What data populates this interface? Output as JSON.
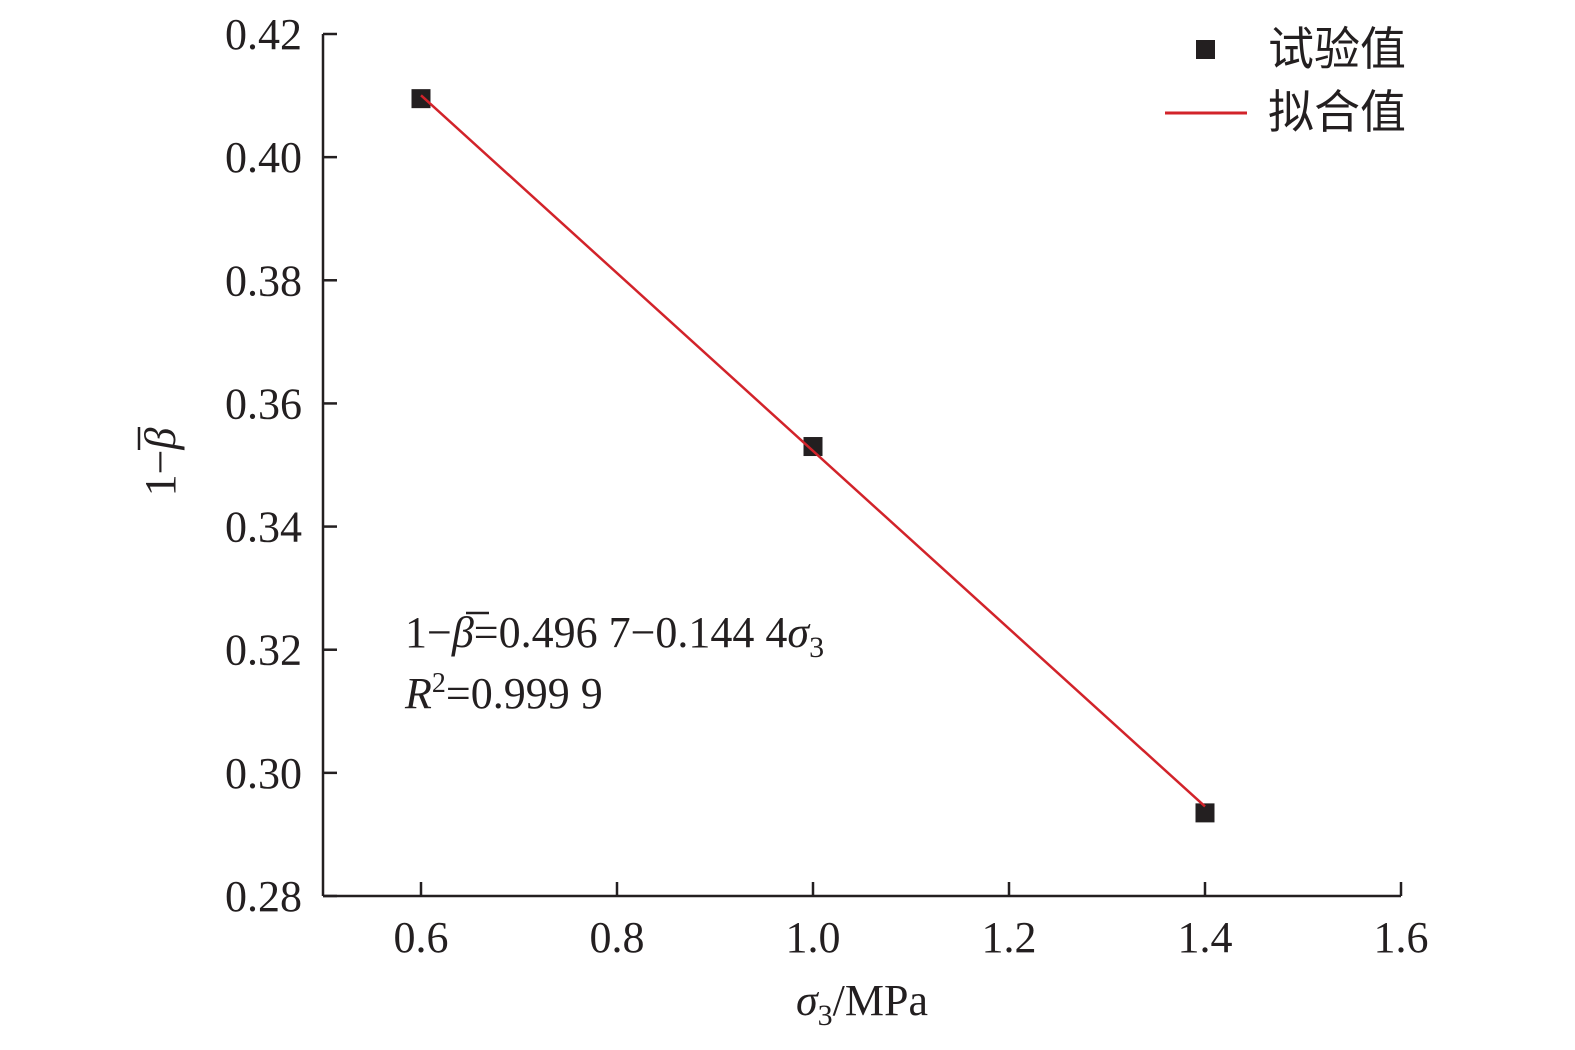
{
  "chart_data": {
    "type": "scatter",
    "xlabel": {
      "symbol": "σ",
      "sub": "3",
      "unit": "/MPa"
    },
    "ylabel": {
      "prefix": "1−",
      "symbol": "β"
    },
    "xlim": [
      0.5,
      1.6
    ],
    "ylim": [
      0.28,
      0.42
    ],
    "xticks": [
      "0.6",
      "0.8",
      "1.0",
      "1.2",
      "1.4",
      "1.6"
    ],
    "yticks": [
      "0.28",
      "0.30",
      "0.32",
      "0.34",
      "0.36",
      "0.38",
      "0.40",
      "0.42"
    ],
    "series": [
      {
        "name": "试验值",
        "kind": "points",
        "color": "#231f20",
        "x": [
          0.6,
          1.0,
          1.4
        ],
        "y": [
          0.4095,
          0.353,
          0.2935
        ]
      },
      {
        "name": "拟合值",
        "kind": "line",
        "color": "#d2232a",
        "x": [
          0.6,
          1.4
        ],
        "y": [
          0.41004,
          0.29454
        ]
      }
    ],
    "legend_position": "top-right",
    "annotation": {
      "line1": {
        "prefix": "1−",
        "symbol": "β",
        "rest": "=0.496 7−0.144 4",
        "var": "σ",
        "sub": "3"
      },
      "line2": {
        "var": "R",
        "sup": "2",
        "rest": "=0.999 9"
      }
    }
  }
}
